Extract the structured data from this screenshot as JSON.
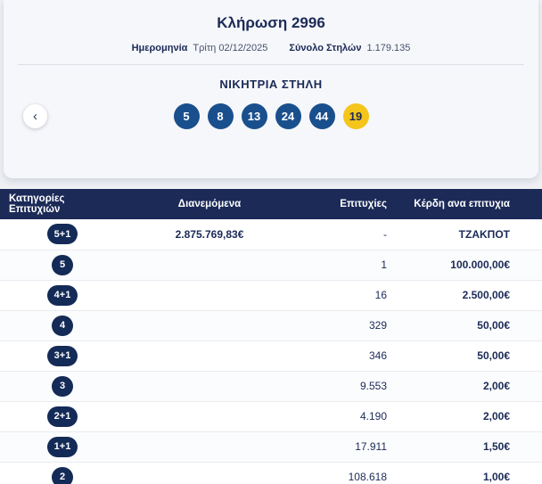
{
  "header": {
    "title": "Κλήρωση 2996",
    "date_label": "Ημερομηνία",
    "date_value": "Τρίτη 02/12/2025",
    "columns_label": "Σύνολο Στηλών",
    "columns_value": "1.179.135",
    "winning_title": "ΝΙΚΗΤΡΙΑ ΣΤΗΛΗ",
    "numbers": [
      "5",
      "8",
      "13",
      "24",
      "44"
    ],
    "joker": "19"
  },
  "nav": {
    "prev_icon": "‹"
  },
  "table": {
    "headers": {
      "category": "Κατηγορίες Επιτυχιών",
      "distributed": "Διανεμόμενα",
      "wins": "Επιτυχίες",
      "prize": "Κέρδη ανα επιτυχια"
    },
    "rows": [
      {
        "category": "5+1",
        "distributed": "2.875.769,83€",
        "wins": "-",
        "prize": "ΤΖΑΚΠΟΤ"
      },
      {
        "category": "5",
        "distributed": "",
        "wins": "1",
        "prize": "100.000,00€"
      },
      {
        "category": "4+1",
        "distributed": "",
        "wins": "16",
        "prize": "2.500,00€"
      },
      {
        "category": "4",
        "distributed": "",
        "wins": "329",
        "prize": "50,00€"
      },
      {
        "category": "3+1",
        "distributed": "",
        "wins": "346",
        "prize": "50,00€"
      },
      {
        "category": "3",
        "distributed": "",
        "wins": "9.553",
        "prize": "2,00€"
      },
      {
        "category": "2+1",
        "distributed": "",
        "wins": "4.190",
        "prize": "2,00€"
      },
      {
        "category": "1+1",
        "distributed": "",
        "wins": "17.911",
        "prize": "1,50€"
      },
      {
        "category": "2",
        "distributed": "",
        "wins": "108.618",
        "prize": "1,00€"
      }
    ]
  },
  "colors": {
    "navy": "#1b2a57",
    "ball_blue": "#1a4f8e",
    "joker_yellow": "#f5c51c",
    "page_bg": "#eef0f4"
  }
}
